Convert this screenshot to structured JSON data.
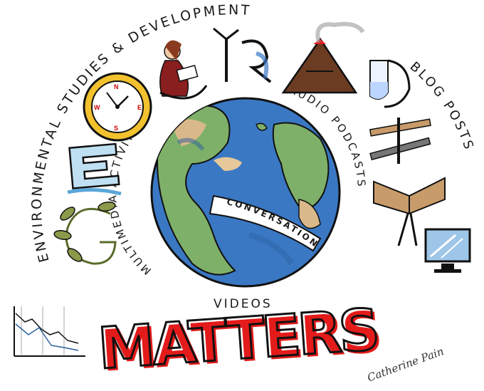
{
  "title_word": "GEOGRAPHY",
  "matters_word": "MATTERS",
  "arc_labels": {
    "environmental": "ENVIRONMENTAL STUDIES & DEVELOPMENT",
    "multimedia": "MULTIMEDIA ACTIVITIES",
    "audio": "AUDIO PODCASTS",
    "blog": "BLOG POSTS",
    "videos": "VIDEOS",
    "conversation": "CONVERSATION"
  },
  "signature": "Catherine Pain",
  "colors": {
    "ocean": "#3a78c4",
    "land_green": "#7fb069",
    "land_tan": "#d9b98a",
    "matters_red": "#e31b1b",
    "ink": "#111111",
    "clock_yellow": "#f2c12e",
    "volcano_brown": "#6b3b22",
    "plant_green": "#8a9a4a"
  },
  "icons": [
    "clock-icon",
    "person-reading-icon",
    "wind-turbine-icon",
    "volcano-icon",
    "test-tube-icon",
    "pen-icon",
    "open-book-icon",
    "monitor-icon",
    "graph-icon",
    "plant-icon",
    "globe-icon"
  ]
}
